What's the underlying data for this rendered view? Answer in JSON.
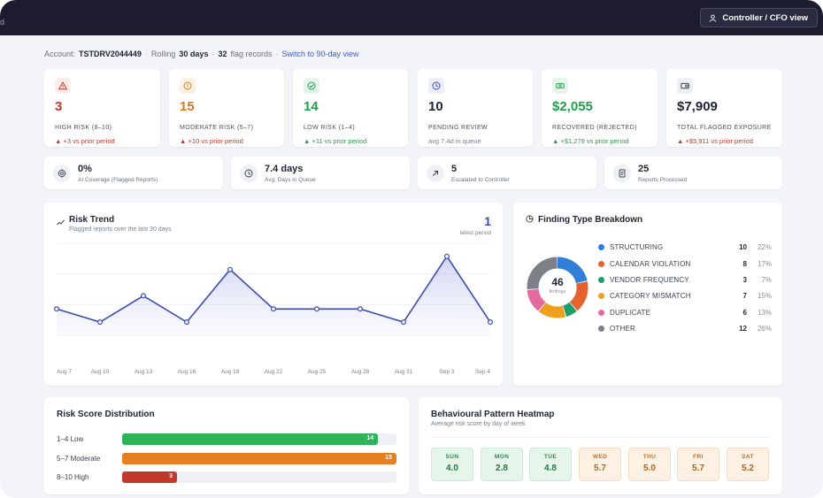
{
  "topbar": {
    "crumb_fragment": "rd",
    "role_label": "Controller / CFO view"
  },
  "account": {
    "label": "Account:",
    "id": "TSTDRV2044449",
    "rolling_label": "Rolling",
    "rolling_value": "30 days",
    "records_count": "32",
    "records_label": "flag records",
    "switch_link": "Switch to 90-day view"
  },
  "kpis": [
    {
      "icon": "warning-triangle-icon",
      "value": "3",
      "label": "HIGH RISK (8–10)",
      "delta": "▲ +3 vs prior period",
      "color": "#c0392b",
      "icon_bg": "#fdecea"
    },
    {
      "icon": "alert-circle-icon",
      "value": "15",
      "label": "MODERATE RISK (5–7)",
      "delta": "▲ +10 vs prior period",
      "color": "#d9791f",
      "icon_bg": "#fdf1e4"
    },
    {
      "icon": "check-circle-icon",
      "value": "14",
      "label": "LOW RISK (1–4)",
      "delta": "▲ +11 vs prior period",
      "color": "#1e9e4a",
      "icon_bg": "#e6f5ea"
    },
    {
      "icon": "clock-icon",
      "value": "10",
      "label": "PENDING REVIEW",
      "delta": "avg 7.4d in queue",
      "color": "#1f2433",
      "icon_bg": "#eceefb"
    },
    {
      "icon": "cash-icon",
      "value": "$2,055",
      "label": "RECOVERED (REJECTED)",
      "delta": "▲ +$1,279 vs prior period",
      "color": "#1e9e4a",
      "icon_bg": "#e6f5ea"
    },
    {
      "icon": "wallet-icon",
      "value": "$7,909",
      "label": "TOTAL FLAGGED EXPOSURE",
      "delta": "▲ +$5,911 vs prior period",
      "color": "#1f2433",
      "icon_bg": "#eef0f4"
    }
  ],
  "stats": [
    {
      "icon": "target-icon",
      "value": "0%",
      "label": "AI Coverage (Flagged Reports)"
    },
    {
      "icon": "clock-icon",
      "value": "7.4 days",
      "label": "Avg. Days in Queue"
    },
    {
      "icon": "arrow-up-right-icon",
      "value": "5",
      "label": "Escalated to Controller"
    },
    {
      "icon": "document-icon",
      "value": "25",
      "label": "Reports Processed"
    }
  ],
  "risk_trend": {
    "title": "Risk Trend",
    "subtitle": "Flagged reports over the last 30 days",
    "latest_value": "1",
    "latest_label": "latest period"
  },
  "chart_data": {
    "type": "area",
    "x": [
      "Aug 7",
      "Aug 10",
      "Aug 13",
      "Aug 16",
      "Aug 19",
      "Aug 22",
      "Aug 25",
      "Aug 28",
      "Aug 31",
      "Sep 3",
      "Sep 4"
    ],
    "values": [
      2,
      1,
      3,
      1,
      5,
      2,
      2,
      2,
      1,
      6,
      1
    ],
    "ylim": [
      0,
      7
    ],
    "grid": true,
    "color": "#3a4bb0"
  },
  "finding_breakdown": {
    "title": "Finding Type Breakdown",
    "total": "46",
    "total_label": "findings",
    "items": [
      {
        "name": "STRUCTURING",
        "count": "10",
        "pct": "22%",
        "color": "#2f7fd8"
      },
      {
        "name": "CALENDAR VIOLATION",
        "count": "8",
        "pct": "17%",
        "color": "#e4622e"
      },
      {
        "name": "VENDOR FREQUENCY",
        "count": "3",
        "pct": "7%",
        "color": "#1f9e6a"
      },
      {
        "name": "CATEGORY MISMATCH",
        "count": "7",
        "pct": "15%",
        "color": "#f0a020"
      },
      {
        "name": "DUPLICATE",
        "count": "6",
        "pct": "13%",
        "color": "#e56aa0"
      },
      {
        "name": "OTHER",
        "count": "12",
        "pct": "26%",
        "color": "#7b7f86"
      }
    ]
  },
  "risk_distribution": {
    "title": "Risk Score Distribution",
    "max": 15,
    "rows": [
      {
        "label": "1–4 Low",
        "value": 14,
        "display": "14",
        "color": "#2fb35a"
      },
      {
        "label": "5–7 Moderate",
        "value": 15,
        "display": "15",
        "color": "#e67e22"
      },
      {
        "label": "8–10 High",
        "value": 3,
        "display": "3",
        "color": "#c0392b"
      }
    ]
  },
  "heatmap": {
    "title": "Behavioural Pattern Heatmap",
    "subtitle": "Average risk score by day of week",
    "days": [
      {
        "day": "SUN",
        "value": "4.0",
        "level": "green"
      },
      {
        "day": "MON",
        "value": "2.8",
        "level": "green"
      },
      {
        "day": "TUE",
        "value": "4.8",
        "level": "green"
      },
      {
        "day": "WED",
        "value": "5.7",
        "level": "orange"
      },
      {
        "day": "THU",
        "value": "5.0",
        "level": "orange"
      },
      {
        "day": "FRI",
        "value": "5.7",
        "level": "orange"
      },
      {
        "day": "SAT",
        "value": "5.2",
        "level": "orange"
      }
    ]
  }
}
